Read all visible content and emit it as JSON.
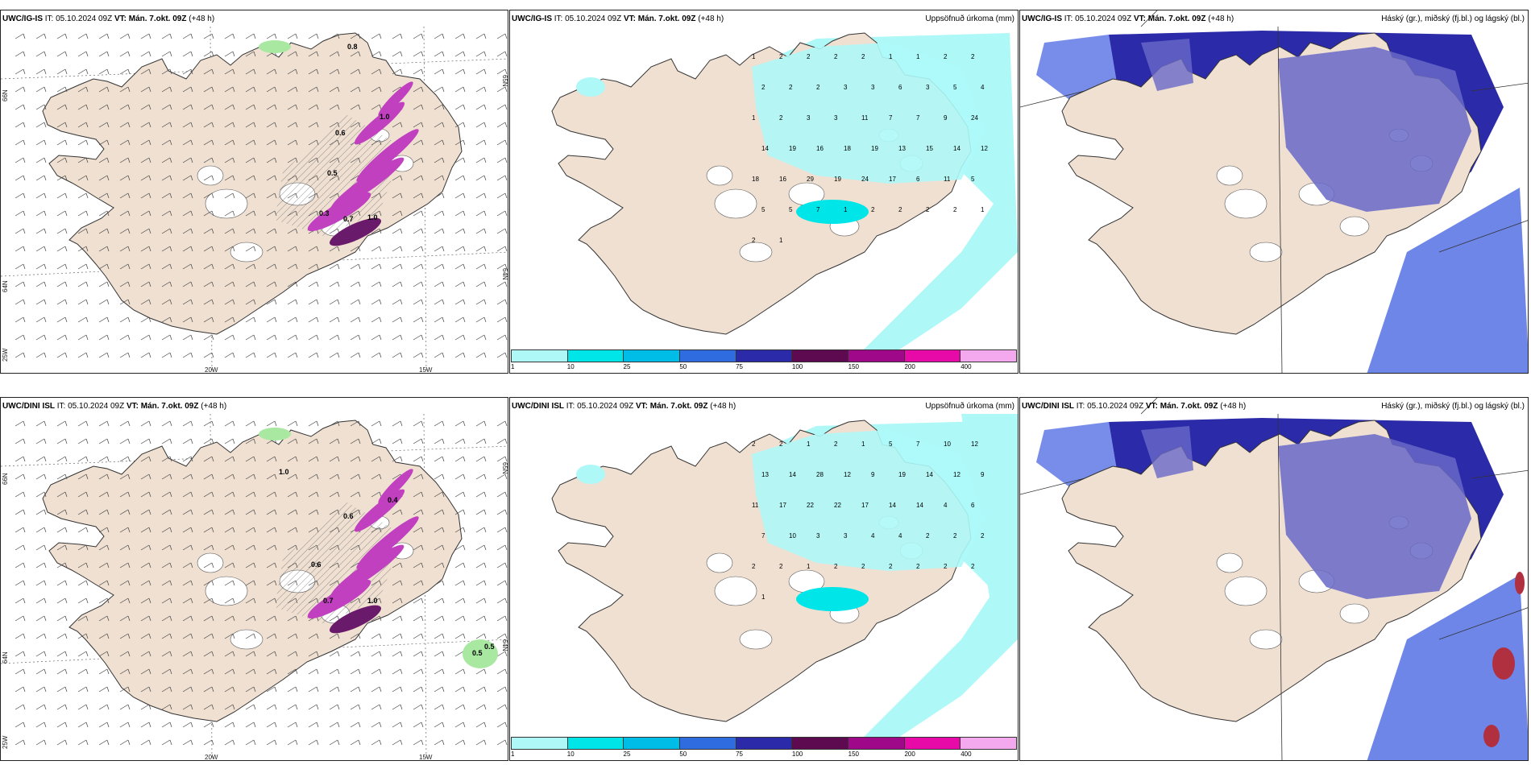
{
  "rows": [
    {
      "model": "UWC/IG-IS",
      "it": "IT: 05.10.2024 09Z",
      "vt": "VT: Mán. 7.okt. 09Z",
      "lead": "(+48 h)",
      "precip_title": "Uppsöfnuð úrkoma (mm)",
      "cloud_title": "Háský (gr.), miðský (fj.bl.) og lágský (bl.)",
      "precip_values": [
        "1",
        "2",
        "2",
        "2",
        "2",
        "1",
        "1",
        "2",
        "2",
        "2",
        "2",
        "2",
        "3",
        "3",
        "6",
        "3",
        "5",
        "4",
        "1",
        "2",
        "3",
        "3",
        "11",
        "7",
        "7",
        "9",
        "24",
        "14",
        "19",
        "16",
        "18",
        "19",
        "13",
        "15",
        "14",
        "12",
        "18",
        "16",
        "29",
        "19",
        "24",
        "17",
        "6",
        "11",
        "5",
        "5",
        "5",
        "7",
        "1",
        "2",
        "2",
        "2",
        "2",
        "1",
        "2",
        "1"
      ],
      "icing_values": [
        "0.8",
        "0.6",
        "1.0",
        "0.5",
        "0.3",
        "0.7",
        "1.0"
      ]
    },
    {
      "model": "UWC/DINI ISL",
      "it": "IT: 05.10.2024 09Z",
      "vt": "VT: Mán. 7.okt. 09Z",
      "lead": "(+48 h)",
      "precip_title": "Uppsöfnuð úrkoma (mm)",
      "cloud_title": "Háský (gr.), miðský (fj.bl.) og lágský (bl.)",
      "precip_values": [
        "2",
        "2",
        "1",
        "2",
        "1",
        "5",
        "7",
        "10",
        "12",
        "13",
        "14",
        "28",
        "12",
        "9",
        "19",
        "14",
        "12",
        "9",
        "11",
        "17",
        "22",
        "22",
        "17",
        "14",
        "14",
        "4",
        "6",
        "7",
        "10",
        "3",
        "3",
        "4",
        "4",
        "2",
        "2",
        "2",
        "2",
        "2",
        "1",
        "2",
        "2",
        "2",
        "2",
        "2",
        "2",
        "1"
      ],
      "icing_values": [
        "1.0",
        "0.6",
        "0.4",
        "0.6",
        "0.7",
        "1.0",
        "0.5",
        "0.5"
      ]
    }
  ],
  "colorbar": {
    "ticks": [
      "1",
      "10",
      "25",
      "50",
      "75",
      "100",
      "150",
      "200",
      "400"
    ],
    "colors": [
      "#aef8f8",
      "#00e5e8",
      "#00bde8",
      "#2f6ce0",
      "#2b2aa8",
      "#5e0a50",
      "#a0088a",
      "#e80aa8",
      "#f4a8ee"
    ]
  },
  "axes": {
    "lon": [
      "20W",
      "15W"
    ],
    "lat_left": [
      "66N",
      "64N",
      "25W"
    ],
    "lat_right": [
      "65N",
      "64N"
    ]
  },
  "colors": {
    "land": "#efe0d2",
    "coast": "#333333",
    "precip_light": "#aef8f8",
    "precip_mid": "#00e5e8",
    "cloud_high": "#6969c8",
    "cloud_mid": "#3d5de0",
    "cloud_low": "#2b2aa8",
    "icing": "#c040c0",
    "icing_dark": "#6a1a6a",
    "green": "#a8e8a0",
    "red": "#b03040"
  }
}
